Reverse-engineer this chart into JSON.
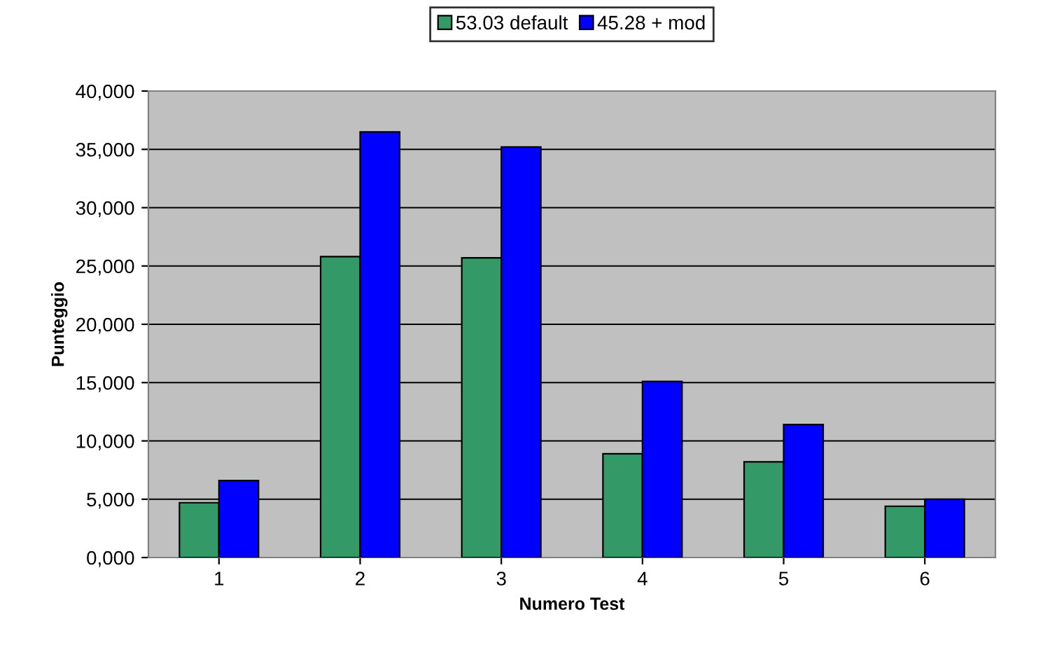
{
  "chart_data": {
    "type": "bar",
    "xlabel": "Numero Test",
    "ylabel": "Punteggio",
    "categories": [
      "1",
      "2",
      "3",
      "4",
      "5",
      "6"
    ],
    "series": [
      {
        "name": "53.03 default",
        "color": "#339966",
        "values": [
          4700,
          25800,
          25700,
          8900,
          8200,
          4400
        ]
      },
      {
        "name": "45.28 + mod",
        "color": "#0000ff",
        "values": [
          6600,
          36500,
          35200,
          15100,
          11400,
          5000
        ]
      }
    ],
    "ylim": [
      0,
      40000
    ],
    "yticks": [
      {
        "value": 0,
        "label": "0,000"
      },
      {
        "value": 5000,
        "label": "5,000"
      },
      {
        "value": 10000,
        "label": "10,000"
      },
      {
        "value": 15000,
        "label": "15,000"
      },
      {
        "value": 20000,
        "label": "20,000"
      },
      {
        "value": 25000,
        "label": "25,000"
      },
      {
        "value": 30000,
        "label": "30,000"
      },
      {
        "value": 35000,
        "label": "35,000"
      },
      {
        "value": 40000,
        "label": "40,000"
      }
    ],
    "grid": "y",
    "legend": "top"
  }
}
